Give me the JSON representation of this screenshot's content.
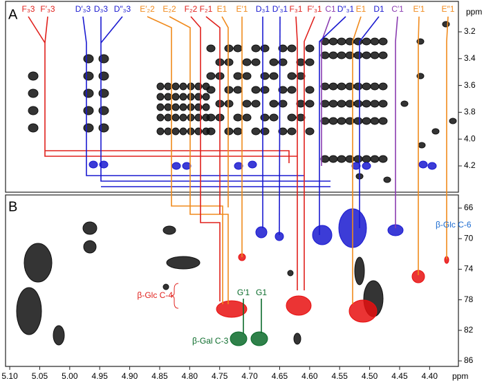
{
  "chart_data": {
    "type": "nmr-2d",
    "x_label": "ppm",
    "xlim": [
      5.107,
      4.352
    ],
    "xticks": [
      {
        "value": 5.1,
        "label": "5.10"
      },
      5.05,
      {
        "value": 5,
        "label": "5.00"
      },
      4.95,
      {
        "value": 4.9,
        "label": "4.90"
      },
      4.85,
      {
        "value": 4.8,
        "label": "4.80"
      },
      4.75,
      {
        "value": 4.7,
        "label": "4.70"
      },
      4.65,
      {
        "value": 4.6,
        "label": "4.60"
      },
      4.55,
      {
        "value": 4.5,
        "label": "4.50"
      },
      4.45,
      {
        "value": 4.4,
        "label": "4.40"
      }
    ],
    "panels": [
      {
        "label": "A",
        "y_label": "ppm",
        "ylim": [
          2.973,
          4.396
        ],
        "yticks": [
          3.2,
          3.4,
          3.6,
          3.8,
          {
            "value": 4,
            "label": "4.0"
          },
          4.2
        ]
      },
      {
        "label": "B",
        "ylim": [
          64.28,
          86.72
        ],
        "yticks": [
          66,
          70,
          74,
          78,
          82,
          86
        ]
      }
    ],
    "peak_labels": [
      {
        "text": "F₃3",
        "color": "#e0201c"
      },
      {
        "text": "F′₃3",
        "color": "#e0201c"
      },
      {
        "text": "D′₃3",
        "color": "#1a1ad0"
      },
      {
        "text": "D₃3",
        "color": "#1a1ad0"
      },
      {
        "text": "D″₃3",
        "color": "#1a1ad0"
      },
      {
        "text": "E′₂2",
        "color": "#f08a1c"
      },
      {
        "text": "E₂2",
        "color": "#f08a1c"
      },
      {
        "text": "F₂2",
        "color": "#e0201c"
      },
      {
        "text": "F₂1",
        "color": "#e0201c"
      },
      {
        "text": "E1",
        "color": "#f08a1c"
      },
      {
        "text": "E′1",
        "color": "#f08a1c"
      },
      {
        "text": "D₃1",
        "color": "#1a1ad0"
      },
      {
        "text": "D′₃1",
        "color": "#1a1ad0"
      },
      {
        "text": "F₃1",
        "color": "#e0201c"
      },
      {
        "text": "F′₃1",
        "color": "#e0201c"
      },
      {
        "text": "C1",
        "color": "#8a3cb0"
      },
      {
        "text": "D″₃1",
        "color": "#1a1ad0"
      },
      {
        "text": "E1",
        "color": "#f08a1c"
      },
      {
        "text": "D1",
        "color": "#1a1ad0"
      },
      {
        "text": "C′1",
        "color": "#8a3cb0"
      },
      {
        "text": "E′1",
        "color": "#f08a1c"
      },
      {
        "text": "E″1",
        "color": "#f08a1c"
      }
    ],
    "annotations": [
      {
        "text": "β-Glc C-6",
        "color": "#1a6ad0"
      },
      {
        "text": "β-Glc C-4",
        "color": "#e0201c"
      },
      {
        "text": "β-Gal C-3",
        "color": "#0a6b2a"
      },
      {
        "text": "G′1",
        "color": "#0a6b2a"
      },
      {
        "text": "G1",
        "color": "#0a6b2a"
      }
    ]
  }
}
